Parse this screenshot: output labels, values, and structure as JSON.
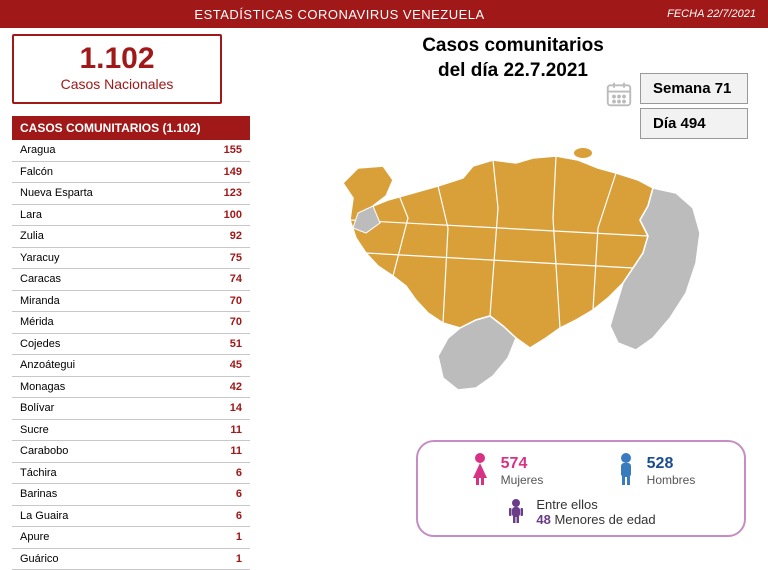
{
  "header": {
    "title": "ESTADÍSTICAS CORONAVIRUS VENEZUELA",
    "date_label": "FECHA 22/7/2021"
  },
  "nacionales": {
    "count": "1.102",
    "label": "Casos Nacionales"
  },
  "main_title_line1": "Casos comunitarios",
  "main_title_line2": "del día 22.7.2021",
  "weekday": {
    "semana": "Semana 71",
    "dia": "Día 494"
  },
  "table": {
    "header": "CASOS COMUNITARIOS (1.102)",
    "rows": [
      {
        "name": "Aragua",
        "value": "155"
      },
      {
        "name": "Falcón",
        "value": "149"
      },
      {
        "name": "Nueva Esparta",
        "value": "123"
      },
      {
        "name": "Lara",
        "value": "100"
      },
      {
        "name": "Zulia",
        "value": "92"
      },
      {
        "name": "Yaracuy",
        "value": "75"
      },
      {
        "name": "Caracas",
        "value": "74"
      },
      {
        "name": "Miranda",
        "value": "70"
      },
      {
        "name": "Mérida",
        "value": "70"
      },
      {
        "name": "Cojedes",
        "value": "51"
      },
      {
        "name": "Anzoátegui",
        "value": "45"
      },
      {
        "name": "Monagas",
        "value": "42"
      },
      {
        "name": "Bolívar",
        "value": "14"
      },
      {
        "name": "Sucre",
        "value": "11"
      },
      {
        "name": "Carabobo",
        "value": "11"
      },
      {
        "name": "Táchira",
        "value": "6"
      },
      {
        "name": "Barinas",
        "value": "6"
      },
      {
        "name": "La Guaira",
        "value": "6"
      },
      {
        "name": "Apure",
        "value": "1"
      },
      {
        "name": "Guárico",
        "value": "1"
      }
    ]
  },
  "gender": {
    "women_count": "574",
    "women_label": "Mujeres",
    "men_count": "528",
    "men_label": "Hombres",
    "minors_prefix": "Entre ellos",
    "minors_count": "48",
    "minors_label": "Menores de edad"
  },
  "colors": {
    "brand_red": "#a01818",
    "map_fill": "#d9a03a",
    "map_grey": "#bcbcbc",
    "pink": "#d63384",
    "blue": "#1a4d8f",
    "purple": "#6a3d8a",
    "border_purple": "#c48ec4"
  },
  "map": {
    "type": "infographic",
    "fill_color": "#d9a03a",
    "inactive_color": "#bcbcbc",
    "background": "#ffffff",
    "stroke": "#ffffff"
  }
}
